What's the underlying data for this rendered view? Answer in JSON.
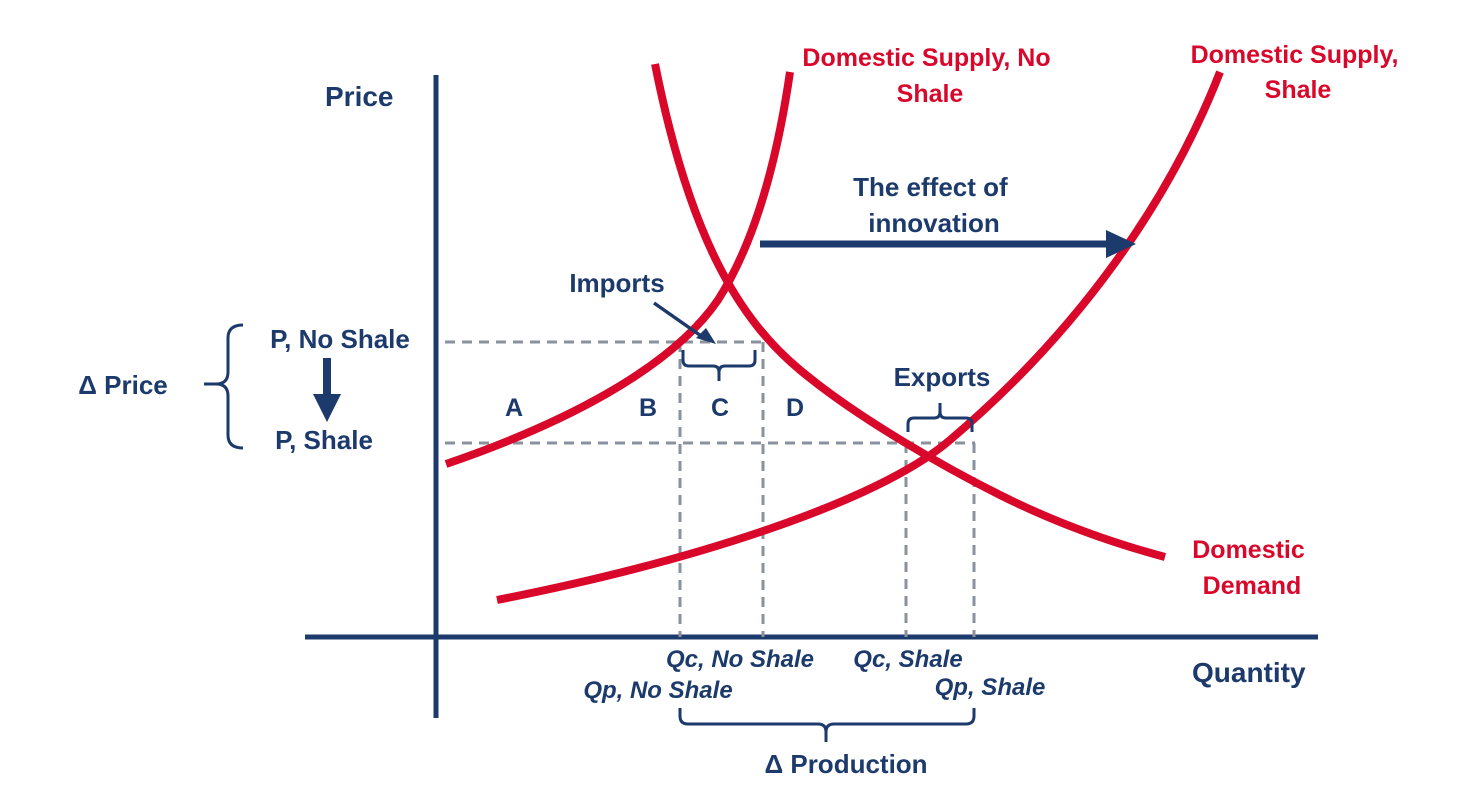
{
  "colors": {
    "navy": "#1c3a6b",
    "red": "#d9082b",
    "dash_gray": "#8a929e"
  },
  "axes": {
    "y_label": "Price",
    "x_label": "Quantity"
  },
  "curves": {
    "supply_no_shale": [
      "Domestic Supply, No",
      "Shale"
    ],
    "supply_shale": [
      "Domestic Supply,",
      "Shale"
    ],
    "demand": [
      "Domestic",
      "Demand"
    ]
  },
  "annotations": {
    "innovation": [
      "The effect of",
      "innovation"
    ],
    "imports": "Imports",
    "exports": "Exports",
    "delta_price": "Δ Price",
    "delta_production": "Δ Production"
  },
  "price_levels": {
    "no_shale": "P, No Shale",
    "shale": "P, Shale"
  },
  "areas": [
    "A",
    "B",
    "C",
    "D"
  ],
  "quantity_labels": {
    "qc_no_shale": "Qc, No Shale",
    "qp_no_shale": "Qp, No Shale",
    "qc_shale": "Qc, Shale",
    "qp_shale": "Qp, Shale"
  }
}
